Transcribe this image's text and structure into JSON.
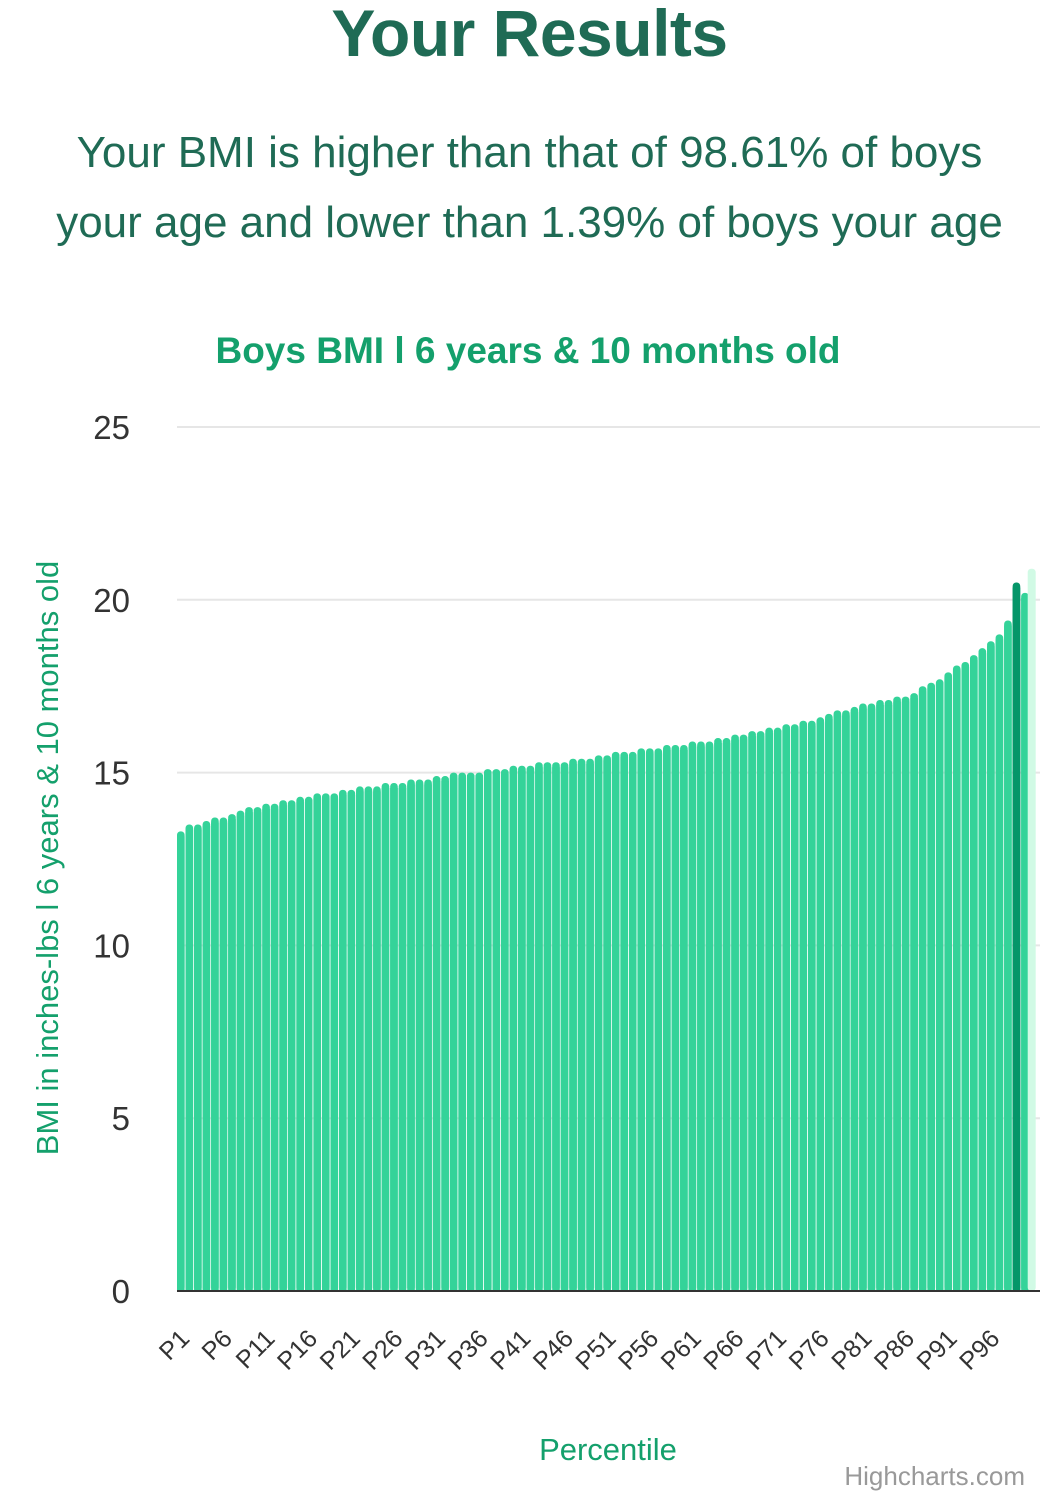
{
  "header": {
    "title": "Your Results",
    "result_line_1": "Your BMI is higher than that of 98.61% of boys",
    "result_line_2": "your age and lower than 1.39% of boys your age"
  },
  "credits": "Highcharts.com",
  "colors": {
    "heading": "#1f6b55",
    "accent": "#14a06c",
    "bar": "#34d399",
    "user_bar": "#059669",
    "extra_bar": "#d1fae5",
    "grid": "#e6e6e6",
    "axis_text": "#333333",
    "credits": "#999999"
  },
  "chart_data": {
    "type": "bar",
    "title": "Boys BMI l 6 years & 10 months old",
    "xlabel": "Percentile",
    "ylabel": "BMI in inches-lbs l 6 years & 10 months old",
    "ylim": [
      0,
      25
    ],
    "yticks": [
      "0",
      "5",
      "10",
      "15",
      "20",
      "25"
    ],
    "grid": true,
    "legend": "none",
    "xtick_labels": [
      "P1",
      "P6",
      "P11",
      "P16",
      "P21",
      "P26",
      "P31",
      "P36",
      "P41",
      "P46",
      "P51",
      "P56",
      "P61",
      "P66",
      "P71",
      "P76",
      "P81",
      "P86",
      "P91",
      "P96"
    ],
    "categories": [
      "P1",
      "P2",
      "P3",
      "P4",
      "P5",
      "P6",
      "P7",
      "P8",
      "P9",
      "P10",
      "P11",
      "P12",
      "P13",
      "P14",
      "P15",
      "P16",
      "P17",
      "P18",
      "P19",
      "P20",
      "P21",
      "P22",
      "P23",
      "P24",
      "P25",
      "P26",
      "P27",
      "P28",
      "P29",
      "P30",
      "P31",
      "P32",
      "P33",
      "P34",
      "P35",
      "P36",
      "P37",
      "P38",
      "P39",
      "P40",
      "P41",
      "P42",
      "P43",
      "P44",
      "P45",
      "P46",
      "P47",
      "P48",
      "P49",
      "P50",
      "P51",
      "P52",
      "P53",
      "P54",
      "P55",
      "P56",
      "P57",
      "P58",
      "P59",
      "P60",
      "P61",
      "P62",
      "P63",
      "P64",
      "P65",
      "P66",
      "P67",
      "P68",
      "P69",
      "P70",
      "P71",
      "P72",
      "P73",
      "P74",
      "P75",
      "P76",
      "P77",
      "P78",
      "P79",
      "P80",
      "P81",
      "P82",
      "P83",
      "P84",
      "P85",
      "P86",
      "P87",
      "P88",
      "P89",
      "P90",
      "P91",
      "P92",
      "P93",
      "P94",
      "P95",
      "P96",
      "P97",
      "P98",
      "P99",
      "P100"
    ],
    "series": [
      {
        "values": [
          13.3,
          13.5,
          13.5,
          13.6,
          13.7,
          13.7,
          13.8,
          13.9,
          14.0,
          14.0,
          14.1,
          14.1,
          14.2,
          14.2,
          14.3,
          14.3,
          14.4,
          14.4,
          14.4,
          14.5,
          14.5,
          14.6,
          14.6,
          14.6,
          14.7,
          14.7,
          14.7,
          14.8,
          14.8,
          14.8,
          14.9,
          14.9,
          15.0,
          15.0,
          15.0,
          15.0,
          15.1,
          15.1,
          15.1,
          15.2,
          15.2,
          15.2,
          15.3,
          15.3,
          15.3,
          15.3,
          15.4,
          15.4,
          15.4,
          15.5,
          15.5,
          15.6,
          15.6,
          15.6,
          15.7,
          15.7,
          15.7,
          15.8,
          15.8,
          15.8,
          15.9,
          15.9,
          15.9,
          16.0,
          16.0,
          16.1,
          16.1,
          16.2,
          16.2,
          16.3,
          16.3,
          16.4,
          16.4,
          16.5,
          16.5,
          16.6,
          16.7,
          16.8,
          16.8,
          16.9,
          17.0,
          17.0,
          17.1,
          17.1,
          17.2,
          17.2,
          17.3,
          17.5,
          17.6,
          17.7,
          17.9,
          18.1,
          18.2,
          18.4,
          18.6,
          18.8,
          19.0,
          19.4,
          19.8,
          20.2
        ],
        "highlight": {
          "category": "P99",
          "value": 20.5
        },
        "extra": {
          "value": 20.9
        }
      }
    ]
  }
}
